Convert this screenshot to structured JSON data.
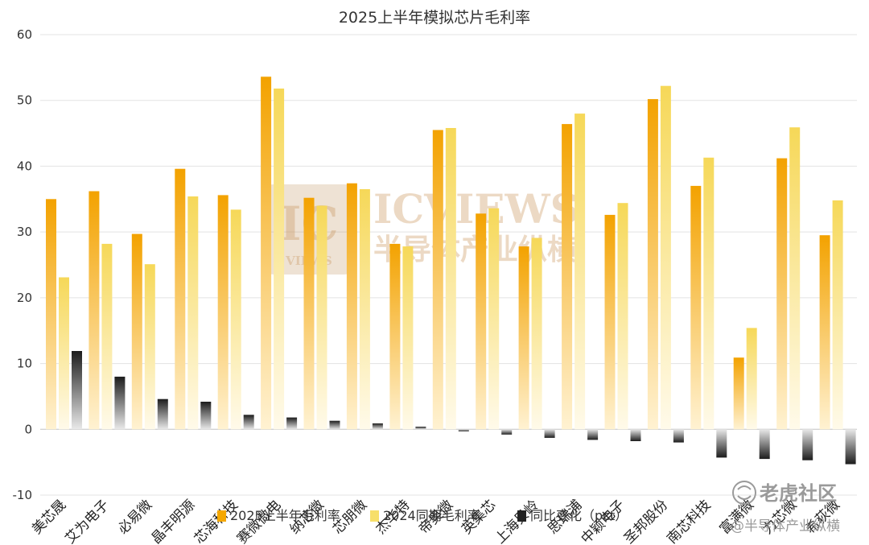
{
  "chart_data": {
    "type": "bar",
    "title": "2025上半年模拟芯片毛利率",
    "categories": [
      "美芯晟",
      "艾为电子",
      "必易微",
      "晶丰明源",
      "芯海科技",
      "赛微微电",
      "纳芯微",
      "芯朋微",
      "杰华特",
      "帝奥微",
      "英集芯",
      "上海贝岭",
      "思瑞浦",
      "中颖电子",
      "圣邦股份",
      "南芯科技",
      "富满微",
      "力芯微",
      "希荻微"
    ],
    "series": [
      {
        "name": "2025上半年毛利率",
        "color": "#f5a800",
        "values": [
          35.0,
          36.2,
          29.7,
          39.6,
          35.6,
          53.6,
          35.2,
          37.4,
          28.2,
          45.5,
          32.8,
          27.8,
          46.4,
          32.6,
          50.2,
          37.0,
          10.9,
          41.2,
          29.5
        ]
      },
      {
        "name": "2024同期毛利率",
        "color": "#f7df6a",
        "values": [
          23.1,
          28.2,
          25.1,
          35.4,
          33.4,
          51.8,
          34.0,
          36.5,
          27.8,
          45.8,
          33.6,
          29.1,
          48.0,
          34.4,
          52.2,
          41.3,
          15.4,
          45.9,
          34.8
        ]
      },
      {
        "name": "同比变化（pct）",
        "color": "#222222",
        "values": [
          11.9,
          8.0,
          4.6,
          4.2,
          2.2,
          1.8,
          1.3,
          0.9,
          0.4,
          -0.3,
          -0.8,
          -1.3,
          -1.6,
          -1.8,
          -2.0,
          -4.3,
          -4.5,
          -4.7,
          -5.3
        ]
      }
    ],
    "ylim": [
      -10,
      60
    ],
    "yticks": [
      "-10",
      "0",
      "10",
      "20",
      "30",
      "40",
      "50",
      "60"
    ],
    "grid": true,
    "legend_position": "bottom"
  },
  "watermark": {
    "logo_letters": "IC",
    "logo_sub": "VIEWS",
    "brand": "ICVIEWS",
    "subtitle": "半导体产业纵横"
  },
  "corner": {
    "platform": "老虎社区",
    "author": "@半导体产业纵横"
  }
}
